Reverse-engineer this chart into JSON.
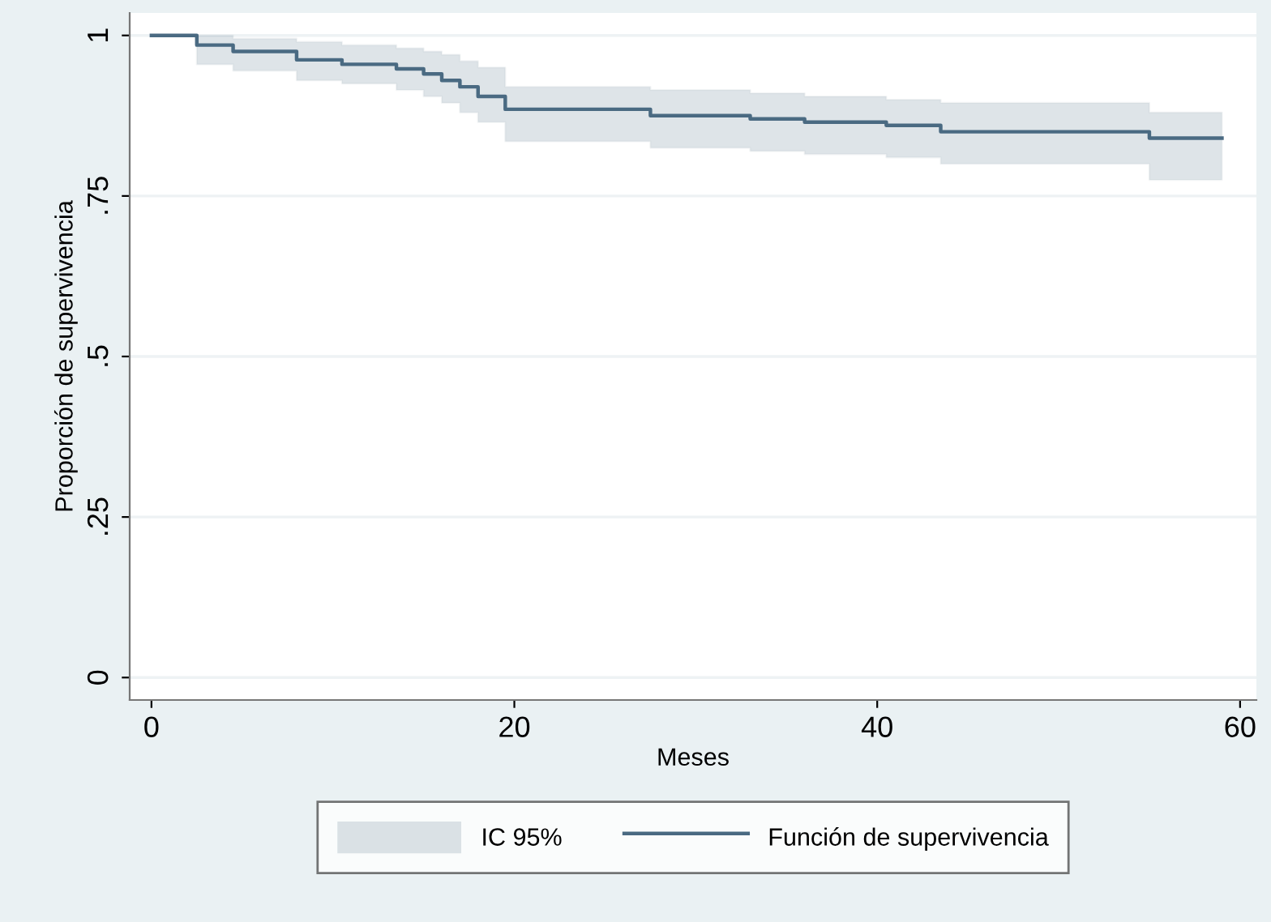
{
  "chart_data": {
    "type": "step",
    "xlabel": "Meses",
    "ylabel": "Proporción de supervivencia",
    "annotations": [
      "IC 95%"
    ],
    "x": [
      0,
      2.5,
      4.5,
      8,
      10.5,
      13.5,
      15,
      16,
      17,
      18,
      19.5,
      27.5,
      33,
      36,
      40.5,
      43.5,
      55,
      59
    ],
    "series": [
      {
        "name": "Función de supervivencia",
        "color": "#4a6a82",
        "values": [
          1,
          0.985,
          0.975,
          0.962,
          0.955,
          0.948,
          0.94,
          0.93,
          0.92,
          0.905,
          0.885,
          0.875,
          0.87,
          0.865,
          0.86,
          0.85,
          0.84,
          0.84
        ],
        "upper": [
          1,
          1,
          0.995,
          0.99,
          0.985,
          0.98,
          0.975,
          0.97,
          0.96,
          0.95,
          0.92,
          0.915,
          0.91,
          0.905,
          0.9,
          0.895,
          0.88,
          0.88
        ],
        "lower": [
          1,
          0.955,
          0.945,
          0.93,
          0.925,
          0.915,
          0.905,
          0.895,
          0.88,
          0.865,
          0.835,
          0.825,
          0.82,
          0.815,
          0.81,
          0.8,
          0.775,
          0.775
        ]
      }
    ],
    "xlim": [
      -1.2,
      60.9
    ],
    "xticks": [
      0,
      20,
      40,
      60
    ],
    "ylim": [
      -0.035,
      1.035
    ],
    "yticks": [
      0,
      {
        "value": 0.25,
        "label": ".25"
      },
      {
        "value": 0.5,
        "label": ".5"
      },
      {
        "value": 0.75,
        "label": ".75"
      },
      1
    ],
    "grid": "y",
    "legend": "bottom",
    "line_style": "solid",
    "marker": "none"
  }
}
